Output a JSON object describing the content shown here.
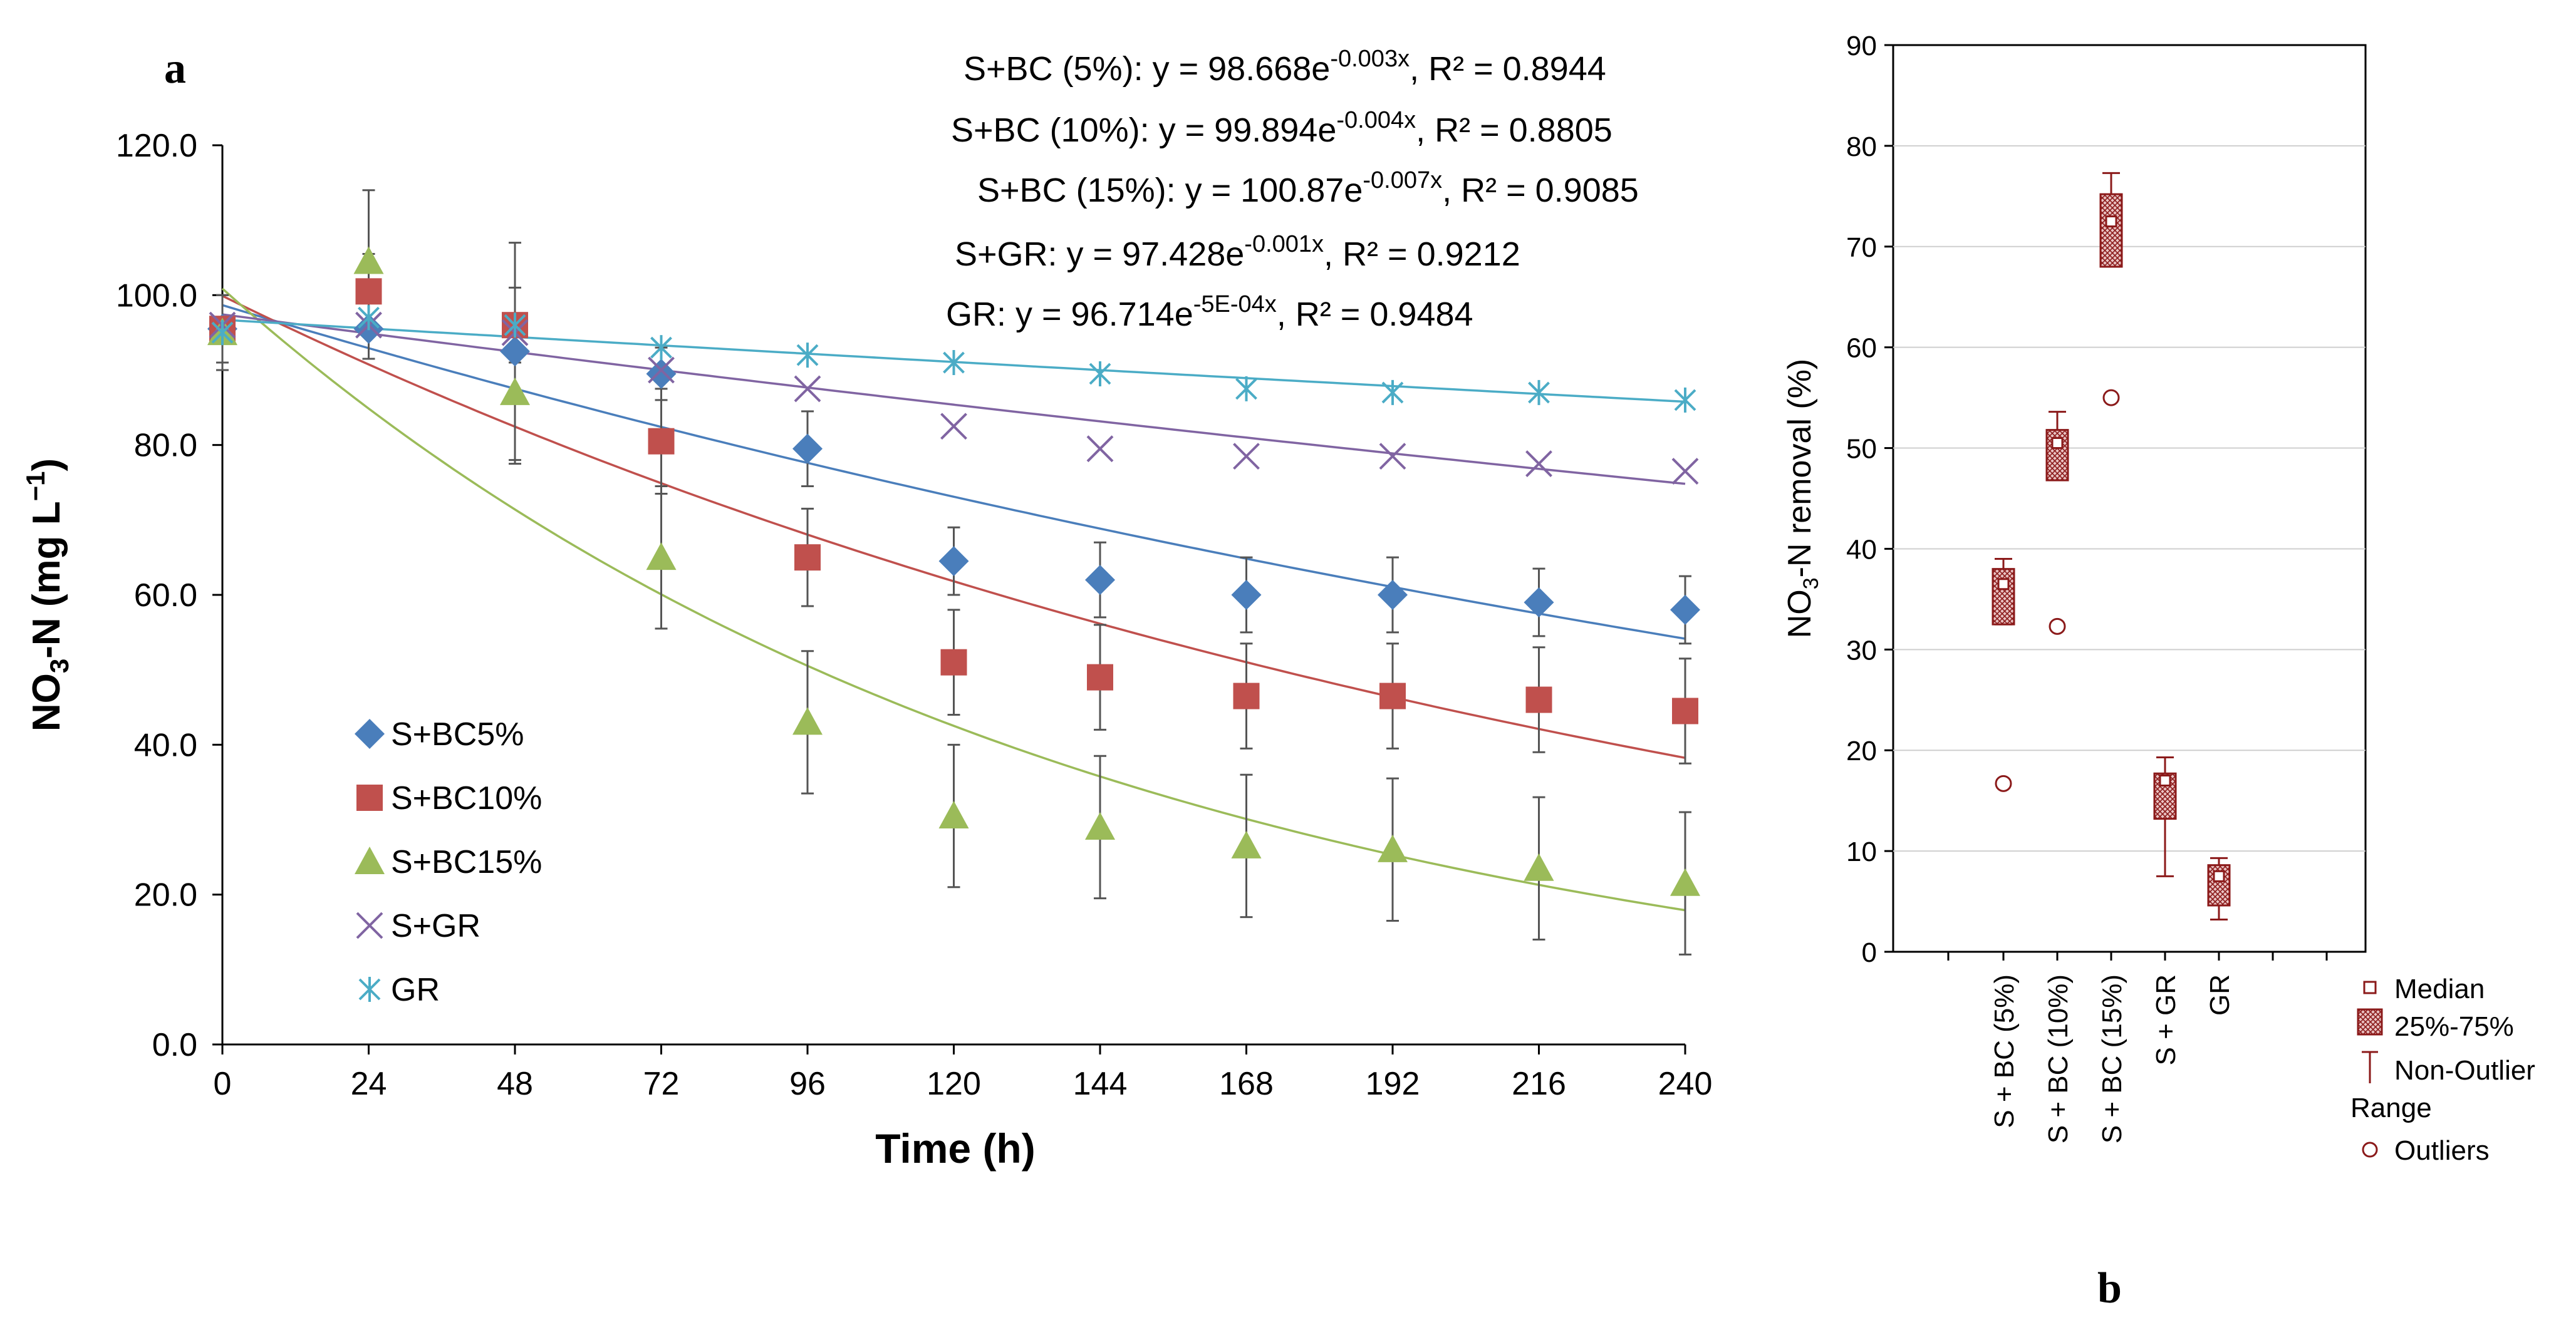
{
  "chart_data": [
    {
      "panel": "a",
      "type": "scatter",
      "title": "",
      "xlabel": "Time (h)",
      "ylabel": "NO3-N (mg L⁻¹)",
      "ylabel_main": "NO",
      "ylabel_sub": "3",
      "ylabel_rest": "-N (mg L",
      "ylabel_sup": "−1",
      "ylabel_close": ")",
      "xlim": [
        0,
        240
      ],
      "ylim": [
        0,
        120
      ],
      "x": [
        0,
        24,
        48,
        72,
        96,
        120,
        144,
        168,
        192,
        216,
        240
      ],
      "x_tick_labels": [
        "0",
        "24",
        "48",
        "72",
        "96",
        "120",
        "144",
        "168",
        "192",
        "216",
        "240"
      ],
      "y_tick_labels": [
        "0.0",
        "20.0",
        "40.0",
        "60.0",
        "80.0",
        "100.0",
        "120.0"
      ],
      "y_ticks": [
        0,
        20,
        40,
        60,
        80,
        100,
        120
      ],
      "series": [
        {
          "name": "S+BC5%",
          "marker": "diamond",
          "color": "#4a7ebb",
          "values": [
            95.5,
            95.5,
            92.5,
            89.5,
            79.5,
            64.5,
            62.0,
            60.0,
            60.0,
            59.0,
            58.0
          ],
          "errors": [
            4.5,
            4.0,
            14.5,
            3.5,
            5.0,
            4.5,
            5.0,
            5.0,
            5.0,
            4.5,
            4.5
          ],
          "fit": {
            "a": 98.668,
            "k": 0.0025
          }
        },
        {
          "name": "S+BC10%",
          "marker": "square",
          "color": "#c0504d",
          "values": [
            95.5,
            100.5,
            96.0,
            80.5,
            65.0,
            51.0,
            49.0,
            46.5,
            46.5,
            46.0,
            44.5
          ],
          "errors": [
            4.5,
            5.0,
            5.0,
            7.0,
            6.5,
            7.0,
            7.0,
            7.0,
            7.0,
            7.0,
            7.0
          ],
          "fit": {
            "a": 99.894,
            "k": 0.004
          }
        },
        {
          "name": "S+BC15%",
          "marker": "triangle",
          "color": "#9bbb59",
          "values": [
            95.0,
            104.5,
            87.0,
            65.0,
            43.0,
            30.5,
            29.0,
            26.5,
            26.0,
            23.5,
            21.5
          ],
          "errors": [
            5.0,
            9.5,
            9.5,
            9.5,
            9.5,
            9.5,
            9.5,
            9.5,
            9.5,
            9.5,
            9.5
          ],
          "fit": {
            "a": 100.87,
            "k": 0.0072
          }
        },
        {
          "name": "S+GR",
          "marker": "x",
          "color": "#8064a2",
          "values": [
            96.0,
            96.0,
            95.0,
            90.0,
            87.5,
            82.5,
            79.5,
            78.5,
            78.5,
            77.5,
            76.5
          ],
          "errors": [
            0,
            0,
            0,
            0,
            0,
            0,
            0,
            0,
            0,
            0,
            0
          ],
          "fit": {
            "a": 97.428,
            "k": 0.0011
          }
        },
        {
          "name": "GR",
          "marker": "asterisk",
          "color": "#4bacc6",
          "values": [
            95.0,
            97.0,
            96.0,
            93.0,
            92.0,
            91.0,
            89.5,
            87.5,
            87.0,
            87.0,
            86.0
          ],
          "errors": [
            0,
            0,
            0,
            0,
            0,
            0,
            0,
            0,
            0,
            0,
            0
          ],
          "fit": {
            "a": 96.714,
            "k": 0.0005
          }
        }
      ],
      "annotations": [
        {
          "label": "S+BC (5%): y = 98.668e",
          "exp": "-0.003x",
          "tail": ", R² = 0.8944"
        },
        {
          "label": "S+BC (10%): y = 99.894e",
          "exp": "-0.004x",
          "tail": ", R² = 0.8805"
        },
        {
          "label": "S+BC (15%): y = 100.87e",
          "exp": "-0.007x",
          "tail": ", R² = 0.9085"
        },
        {
          "label": "S+GR: y = 97.428e",
          "exp": "-0.001x",
          "tail": ", R² = 0.9212"
        },
        {
          "label": "GR: y = 96.714e",
          "exp": "-5E-04x",
          "tail": ", R² = 0.9484"
        }
      ],
      "legend_position": "bottom-left"
    },
    {
      "panel": "b",
      "type": "box",
      "title": "",
      "ylabel": "NO3-N removal (%)",
      "ylabel_main": "NO",
      "ylabel_sub": "3",
      "ylabel_rest": "-N removal (%)",
      "ylim": [
        0,
        90
      ],
      "y_ticks": [
        0,
        10,
        20,
        30,
        40,
        50,
        60,
        70,
        80,
        90
      ],
      "y_tick_labels": [
        "0",
        "10",
        "20",
        "30",
        "40",
        "50",
        "60",
        "70",
        "80",
        "90"
      ],
      "grid": true,
      "color": "#8b1a1a",
      "categories": [
        "S + BC (5%)",
        "S + BC (10%)",
        "S + BC (15%)",
        "S + GR",
        "GR"
      ],
      "boxes": [
        {
          "median": 36.5,
          "q1": 32.5,
          "q3": 38.0,
          "min": 32.5,
          "max": 39.0,
          "outliers": [
            16.7
          ]
        },
        {
          "median": 50.5,
          "q1": 46.8,
          "q3": 51.8,
          "min": 46.8,
          "max": 53.6,
          "outliers": [
            32.3
          ]
        },
        {
          "median": 72.5,
          "q1": 68.0,
          "q3": 75.2,
          "min": 68.0,
          "max": 77.3,
          "outliers": [
            55.0
          ]
        },
        {
          "median": 17.0,
          "q1": 13.2,
          "q3": 17.7,
          "min": 7.5,
          "max": 19.3,
          "outliers": []
        },
        {
          "median": 7.5,
          "q1": 4.6,
          "q3": 8.6,
          "min": 3.2,
          "max": 9.3,
          "outliers": []
        }
      ],
      "legend": [
        {
          "key": "median",
          "label": "Median"
        },
        {
          "key": "box",
          "label": "25%-75%"
        },
        {
          "key": "range",
          "label": "Non-Outlier"
        },
        {
          "key": "range2",
          "label": "Range"
        },
        {
          "key": "outlier",
          "label": "Outliers"
        }
      ]
    }
  ],
  "panel_labels": {
    "a": "a",
    "b": "b"
  }
}
